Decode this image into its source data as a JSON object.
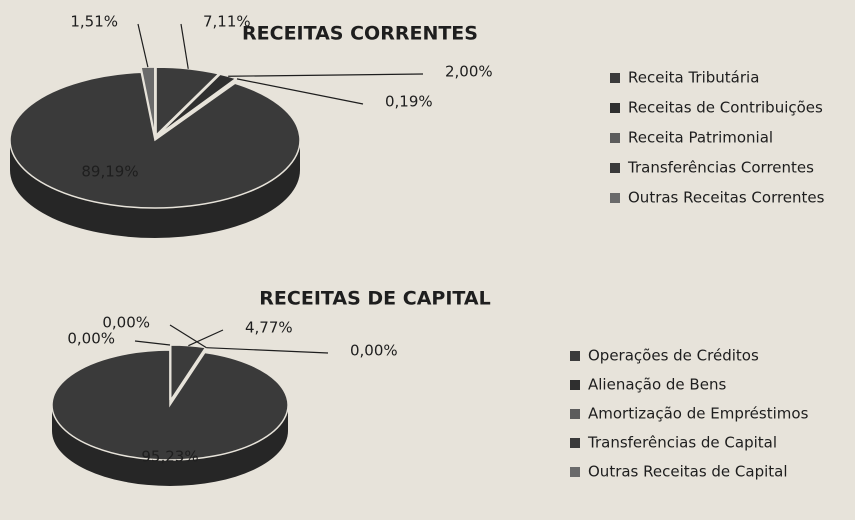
{
  "chart_data": [
    {
      "type": "pie",
      "title": "RECEITAS CORRENTES",
      "categories": [
        "Receita Tributária",
        "Receitas de Contribuições",
        "Receita Patrimonial",
        "Transferências Correntes",
        "Outras Receitas Correntes"
      ],
      "values": [
        7.11,
        2.0,
        0.19,
        89.19,
        1.51
      ],
      "value_labels": [
        "7,11%",
        "2,00%",
        "0,19%",
        "89,19%",
        "1,51%"
      ],
      "colors": [
        "#3b3b3b",
        "#2f2f2f",
        "#5c5c5c",
        "#3a3a3a",
        "#6a6a6a"
      ]
    },
    {
      "type": "pie",
      "title": "RECEITAS DE CAPITAL",
      "categories": [
        "Operações de Créditos",
        "Alienação de Bens",
        "Amortização de Empréstimos",
        "Transferências de Capital",
        "Outras Receitas de Capital"
      ],
      "values": [
        4.77,
        0.0,
        0.0,
        95.23,
        0.0
      ],
      "value_labels": [
        "4,77%",
        "0,00%",
        "0,00%",
        "95,23%",
        "0,00%"
      ],
      "colors": [
        "#3b3b3b",
        "#2f2f2f",
        "#5c5c5c",
        "#3a3a3a",
        "#6a6a6a"
      ]
    }
  ]
}
